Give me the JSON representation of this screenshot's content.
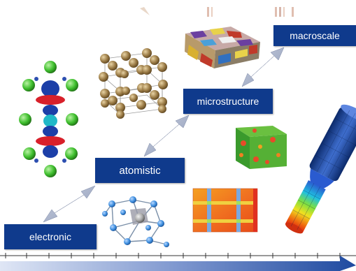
{
  "labels": {
    "electronic": "electronic",
    "atomistic": "atomistic",
    "microstructure": "microstructure",
    "macroscale": "macroscale"
  },
  "colors": {
    "label_bg": "#0f3a8c",
    "arrow": "#9aa6c0",
    "scale_bar": "#2f56a8"
  },
  "icons": [
    "electron-orbital-icon",
    "crystal-lattice-icon",
    "molecular-cluster-icon",
    "grain-structure-icon",
    "material-cube-icon",
    "stress-field-map-icon",
    "finite-element-rod-icon"
  ]
}
